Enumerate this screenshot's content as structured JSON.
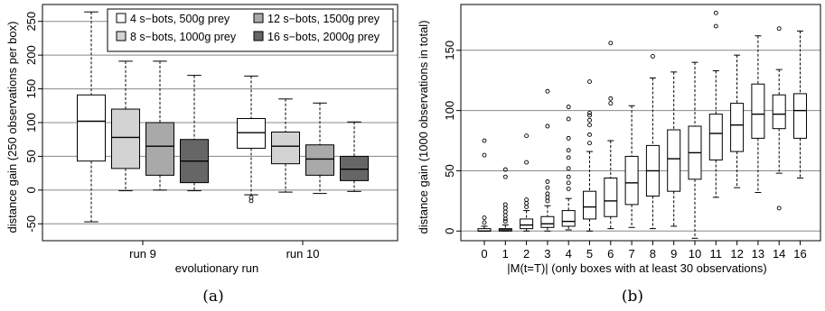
{
  "captions": [
    "(a)",
    "(b)"
  ],
  "chart_data": [
    {
      "type": "boxplot",
      "title": "",
      "xlabel": "evolutionary run",
      "ylabel": "distance gain (250 observations per box)",
      "ylim": [
        -75,
        275
      ],
      "yticks": [
        -50,
        0,
        50,
        100,
        150,
        200,
        250
      ],
      "categories": [
        "run 9",
        "run 10"
      ],
      "grid": "horizontal",
      "legend_position": "top-right",
      "series": [
        {
          "name": "4 s−bots, 500g prey",
          "color": "#ffffff",
          "boxes": [
            {
              "whisker_low": -47,
              "q1": 43,
              "median": 102,
              "q3": 141,
              "whisker_high": 264,
              "outliers": []
            },
            {
              "whisker_low": -7,
              "q1": 62,
              "median": 85,
              "q3": 106,
              "whisker_high": 169,
              "outliers": [
                -11,
                -16
              ]
            }
          ]
        },
        {
          "name": "8 s−bots, 1000g prey",
          "color": "#d3d3d3",
          "boxes": [
            {
              "whisker_low": -1,
              "q1": 32,
              "median": 78,
              "q3": 120,
              "whisker_high": 191,
              "outliers": []
            },
            {
              "whisker_low": -3,
              "q1": 39,
              "median": 65,
              "q3": 86,
              "whisker_high": 135,
              "outliers": []
            }
          ]
        },
        {
          "name": "12 s−bots, 1500g prey",
          "color": "#a9a9a9",
          "boxes": [
            {
              "whisker_low": 0,
              "q1": 22,
              "median": 65,
              "q3": 100,
              "whisker_high": 191,
              "outliers": []
            },
            {
              "whisker_low": -5,
              "q1": 22,
              "median": 46,
              "q3": 67,
              "whisker_high": 129,
              "outliers": []
            }
          ]
        },
        {
          "name": "16 s−bots, 2000g prey",
          "color": "#666666",
          "boxes": [
            {
              "whisker_low": -1,
              "q1": 11,
              "median": 43,
              "q3": 75,
              "whisker_high": 170,
              "outliers": []
            },
            {
              "whisker_low": -2,
              "q1": 14,
              "median": 31,
              "q3": 50,
              "whisker_high": 101,
              "outliers": []
            }
          ]
        }
      ]
    },
    {
      "type": "boxplot",
      "title": "",
      "xlabel": "|M(t=T)|  (only boxes with at least 30 observations)",
      "ylabel": "distance gain (1000 observations in total)",
      "ylim": [
        -8,
        188
      ],
      "yticks": [
        0,
        50,
        100,
        150
      ],
      "grid": "horizontal",
      "categories": [
        "0",
        "1",
        "2",
        "3",
        "4",
        "5",
        "6",
        "7",
        "8",
        "9",
        "10",
        "11",
        "12",
        "13",
        "14",
        "16"
      ],
      "boxes": [
        {
          "whisker_low": 0,
          "q1": 0,
          "median": 0,
          "q3": 2,
          "whisker_high": 4,
          "outliers": [
            11,
            7,
            63,
            75
          ]
        },
        {
          "whisker_low": 0,
          "q1": 0,
          "median": 1,
          "q3": 2,
          "whisker_high": 5,
          "outliers": [
            8,
            10,
            13,
            16,
            19,
            22,
            45,
            51
          ]
        },
        {
          "whisker_low": 0,
          "q1": 2,
          "median": 5,
          "q3": 10,
          "whisker_high": 17,
          "outliers": [
            20,
            23,
            26,
            57,
            79
          ]
        },
        {
          "whisker_low": 0,
          "q1": 3,
          "median": 6,
          "q3": 12,
          "whisker_high": 21,
          "outliers": [
            25,
            28,
            31,
            36,
            41,
            87,
            116
          ]
        },
        {
          "whisker_low": 1,
          "q1": 4,
          "median": 8,
          "q3": 17,
          "whisker_high": 27,
          "outliers": [
            35,
            40,
            45,
            52,
            61,
            67,
            77,
            93,
            103
          ]
        },
        {
          "whisker_low": 0,
          "q1": 10,
          "median": 20,
          "q3": 33,
          "whisker_high": 66,
          "outliers": [
            73,
            80,
            88,
            92,
            96,
            98,
            124
          ]
        },
        {
          "whisker_low": 2,
          "q1": 12,
          "median": 25,
          "q3": 44,
          "whisker_high": 75,
          "outliers": [
            106,
            110,
            156
          ]
        },
        {
          "whisker_low": 3,
          "q1": 22,
          "median": 40,
          "q3": 62,
          "whisker_high": 104,
          "outliers": []
        },
        {
          "whisker_low": 2,
          "q1": 29,
          "median": 50,
          "q3": 71,
          "whisker_high": 127,
          "outliers": [
            145
          ]
        },
        {
          "whisker_low": 4,
          "q1": 33,
          "median": 60,
          "q3": 84,
          "whisker_high": 132,
          "outliers": []
        },
        {
          "whisker_low": -6,
          "q1": 43,
          "median": 65,
          "q3": 87,
          "whisker_high": 140,
          "outliers": []
        },
        {
          "whisker_low": 28,
          "q1": 59,
          "median": 81,
          "q3": 97,
          "whisker_high": 133,
          "outliers": [
            170,
            181
          ]
        },
        {
          "whisker_low": 36,
          "q1": 66,
          "median": 88,
          "q3": 106,
          "whisker_high": 146,
          "outliers": []
        },
        {
          "whisker_low": 32,
          "q1": 77,
          "median": 97,
          "q3": 122,
          "whisker_high": 162,
          "outliers": []
        },
        {
          "whisker_low": 48,
          "q1": 85,
          "median": 97,
          "q3": 113,
          "whisker_high": 134,
          "outliers": [
            19,
            168
          ]
        },
        {
          "whisker_low": 44,
          "q1": 77,
          "median": 100,
          "q3": 114,
          "whisker_high": 166,
          "outliers": []
        }
      ]
    }
  ]
}
